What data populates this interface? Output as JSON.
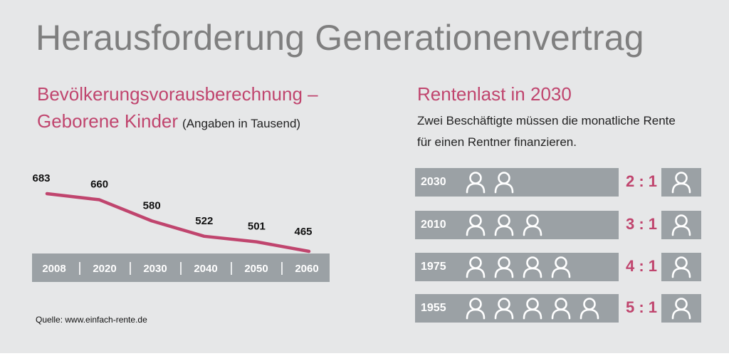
{
  "title": "Herausforderung Generationenvertrag",
  "left_panel": {
    "heading_line1": "Bevölkerungsvorausberechnung –",
    "heading_line2": "Geborene Kinder",
    "heading_note": "(Angaben in Tausend)",
    "source": "Quelle: www.einfach-rente.de"
  },
  "chart_data": {
    "type": "line",
    "title": "Bevölkerungsvorausberechnung – Geborene Kinder",
    "unit_note": "(Angaben in Tausend)",
    "categories": [
      "2008",
      "2020",
      "2030",
      "2040",
      "2050",
      "2060"
    ],
    "series": [
      {
        "values": [
          683,
          660,
          580,
          522,
          501,
          465
        ]
      }
    ],
    "line_color": "#c0456e",
    "axis_band_color": "#9ba1a5",
    "data_labels": true,
    "grid": false
  },
  "right_panel": {
    "heading": "Rentenlast in 2030",
    "desc_line1": "Zwei Beschäftigte müssen die monatliche Rente",
    "desc_line2": "für einen Rentner finanzieren.",
    "rows": [
      {
        "year": "2030",
        "workers": 2,
        "ratio": "2 : 1"
      },
      {
        "year": "2010",
        "workers": 3,
        "ratio": "3 : 1"
      },
      {
        "year": "1975",
        "workers": 4,
        "ratio": "4 : 1"
      },
      {
        "year": "1955",
        "workers": 5,
        "ratio": "5 : 1"
      }
    ],
    "icon": "person-outline-icon",
    "ratio_color": "#c0456e"
  }
}
